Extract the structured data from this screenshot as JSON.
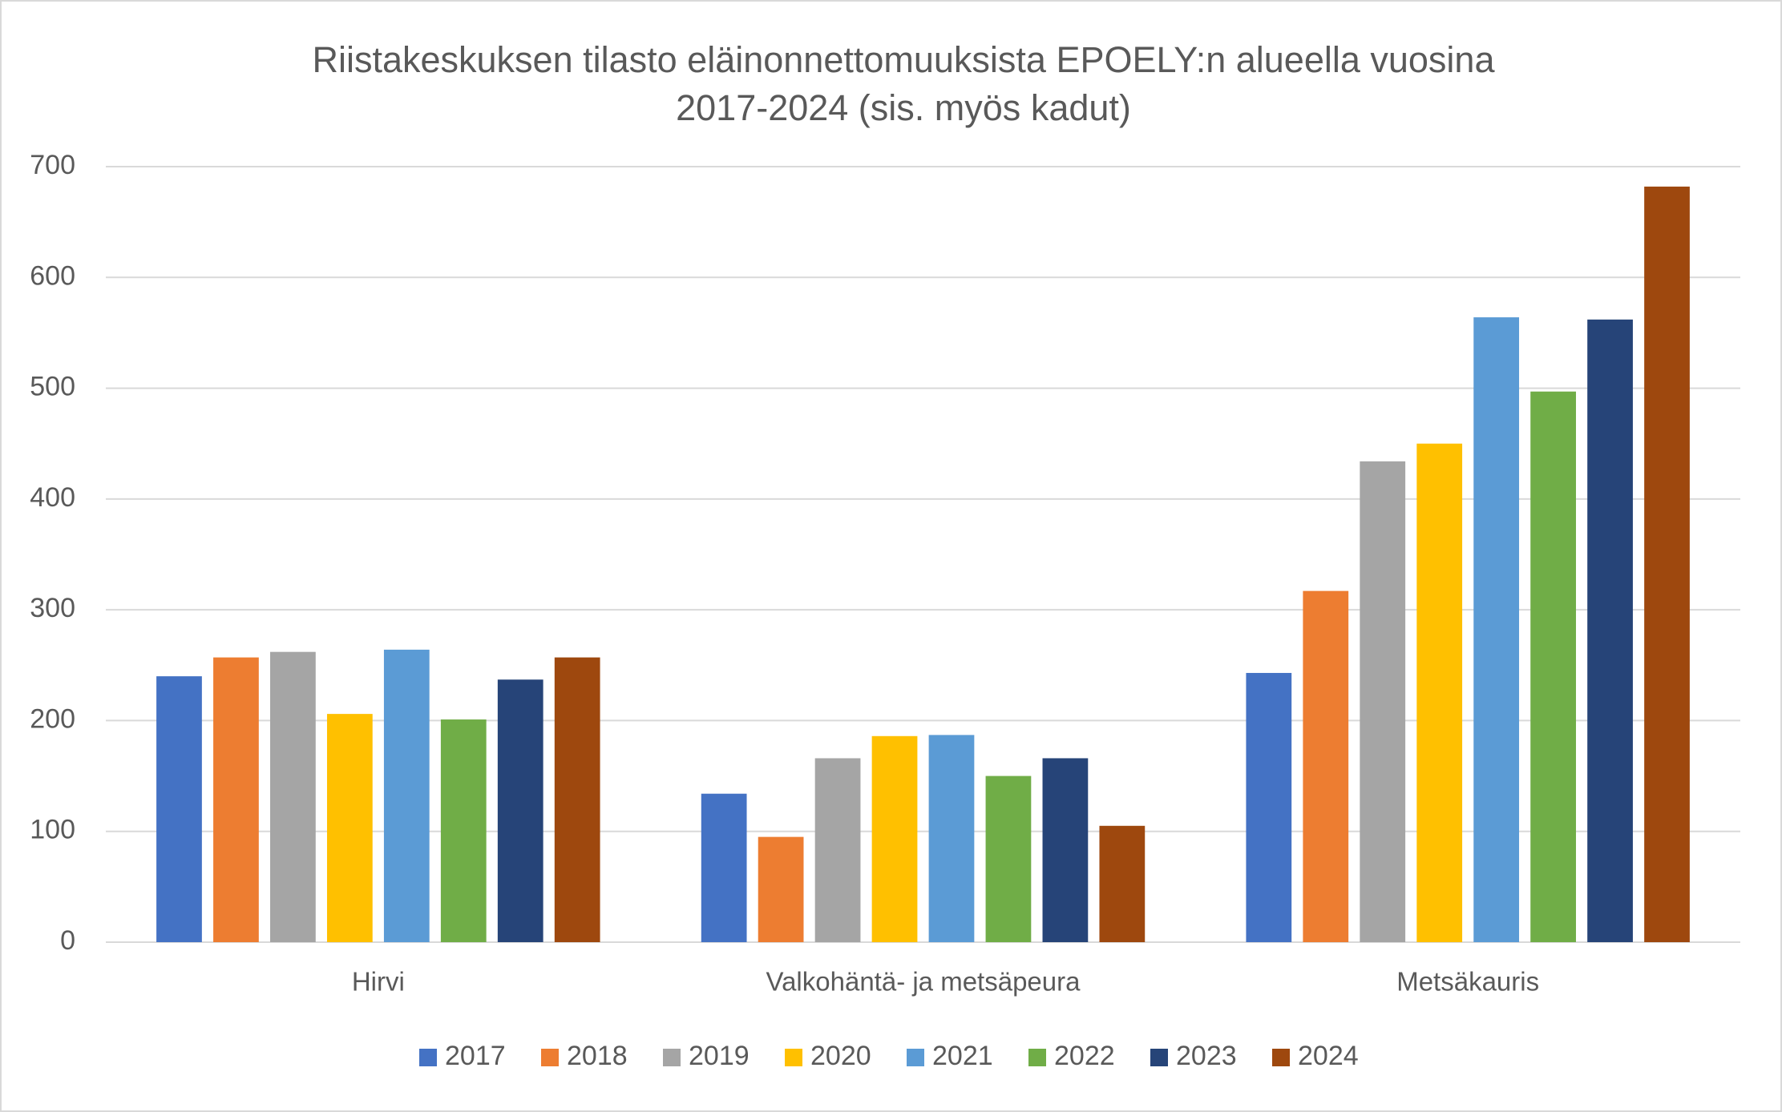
{
  "chart_data": {
    "type": "bar",
    "title": [
      "Riistakeskuksen tilasto eläinonnettomuuksista EPOELY:n alueella vuosina",
      "2017-2024 (sis. myös kadut)"
    ],
    "categories": [
      "Hirvi",
      "Valkohäntä- ja metsäpeura",
      "Metsäkauris"
    ],
    "series": [
      {
        "name": "2017",
        "color": "#4472c4",
        "values": [
          240,
          134,
          243
        ]
      },
      {
        "name": "2018",
        "color": "#ed7d31",
        "values": [
          257,
          95,
          317
        ]
      },
      {
        "name": "2019",
        "color": "#a5a5a5",
        "values": [
          262,
          166,
          434
        ]
      },
      {
        "name": "2020",
        "color": "#ffc000",
        "values": [
          206,
          186,
          450
        ]
      },
      {
        "name": "2021",
        "color": "#5b9bd5",
        "values": [
          264,
          187,
          564
        ]
      },
      {
        "name": "2022",
        "color": "#70ad47",
        "values": [
          201,
          150,
          497
        ]
      },
      {
        "name": "2023",
        "color": "#264478",
        "values": [
          237,
          166,
          562
        ]
      },
      {
        "name": "2024",
        "color": "#9e480e",
        "values": [
          257,
          105,
          682
        ]
      }
    ],
    "ylim": [
      0,
      700
    ],
    "yticks": [
      0,
      100,
      200,
      300,
      400,
      500,
      600,
      700
    ],
    "grid": true,
    "legend": "bottom"
  }
}
